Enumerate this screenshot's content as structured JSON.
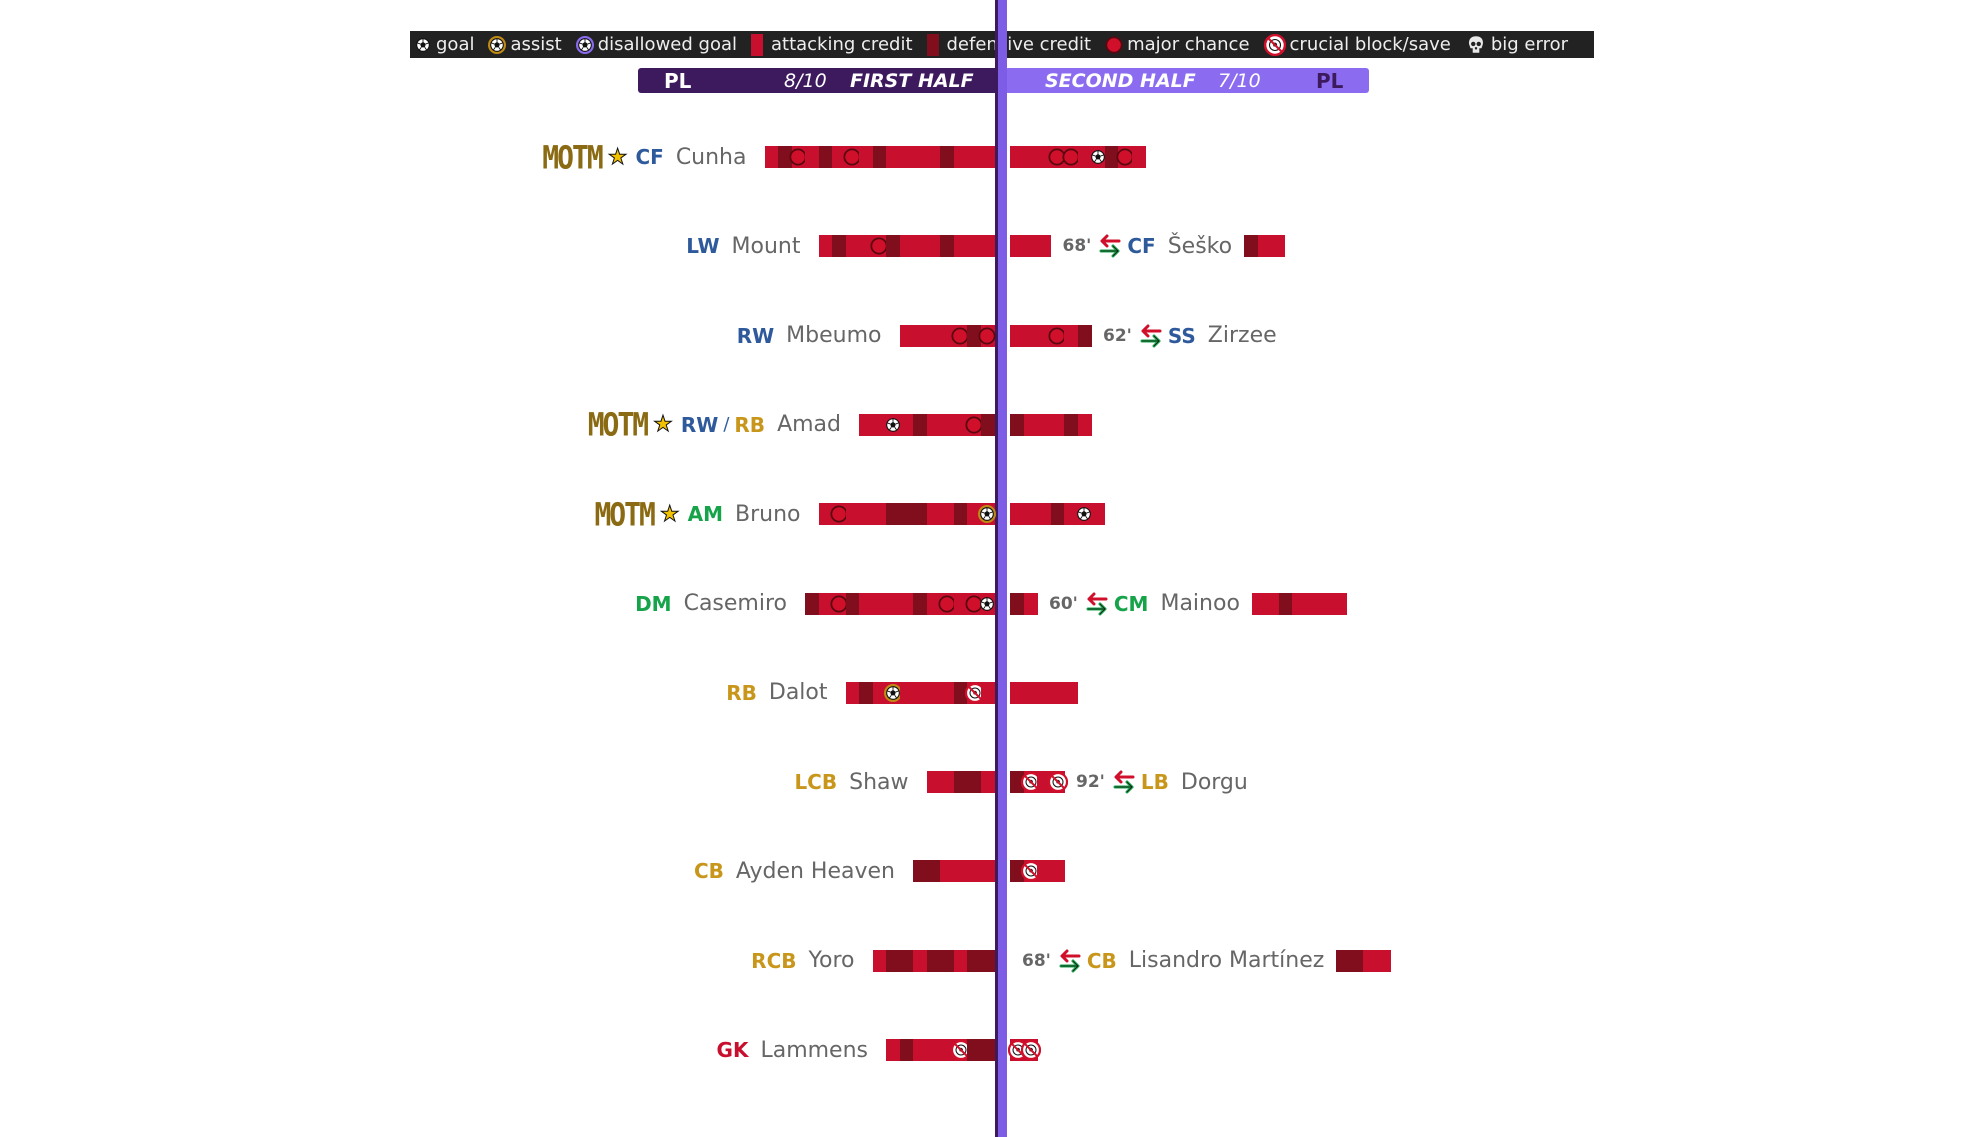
{
  "legend": [
    {
      "icon": "goal-icon",
      "label": "goal"
    },
    {
      "icon": "assist-icon",
      "label": "assist"
    },
    {
      "icon": "disallowed-goal-icon",
      "label": "disallowed goal"
    },
    {
      "icon": "attacking-credit-icon",
      "label": "attacking credit"
    },
    {
      "icon": "defensive-credit-icon",
      "label": "defensive credit"
    },
    {
      "icon": "major-chance-icon",
      "label": "major chance"
    },
    {
      "icon": "crucial-block-save-icon",
      "label": "crucial block/save"
    },
    {
      "icon": "big-error-icon",
      "label": "big error"
    }
  ],
  "colors": {
    "attacking": "#c8102e",
    "defensive": "#800e1c",
    "first_half_header": "#3d1a5e",
    "second_half_header": "#8b6cf0",
    "forward": "#2e5a9c",
    "midfield": "#17a34a",
    "defence": "#c8961a",
    "goalkeeper": "#c8102e",
    "motm": "#8a6a12"
  },
  "first_half": {
    "competition": "PL",
    "rating": "8/10",
    "title": "FIRST HALF"
  },
  "second_half": {
    "competition": "PL",
    "rating": "7/10",
    "title": "SECOND HALF"
  },
  "motm_label": "MOTM",
  "chart_data": {
    "type": "diverging-timeline",
    "halves": [
      "FIRST HALF",
      "SECOND HALF"
    ],
    "rows": [
      {
        "player": "Cunha",
        "positions": [
          "CF"
        ],
        "motm": true,
        "first": [
          "A",
          "D",
          "M",
          "A",
          "D",
          "A",
          "M",
          "A",
          "D",
          "A",
          "A",
          "A",
          "A",
          "D",
          "A",
          "A",
          "A"
        ],
        "second": [
          "A",
          "A",
          "A",
          "M",
          "M",
          "A",
          "G",
          "D",
          "M",
          "A"
        ]
      },
      {
        "player": "Mount",
        "positions": [
          "LW"
        ],
        "first": [
          "A",
          "D",
          "A",
          "A",
          "M",
          "D",
          "A",
          "A",
          "A",
          "D",
          "A",
          "A",
          "A"
        ],
        "second": [
          "A",
          "A",
          "A"
        ],
        "sub": {
          "minute": "68'",
          "player": "Šeško",
          "positions": [
            "CF"
          ],
          "bars": [
            "D",
            "A",
            "A"
          ]
        }
      },
      {
        "player": "Mbeumo",
        "positions": [
          "RW"
        ],
        "first": [
          "A",
          "A",
          "A",
          "A",
          "M",
          "D",
          "M"
        ],
        "second": [
          "A",
          "A",
          "A",
          "M",
          "A",
          "D"
        ],
        "sub": {
          "minute": "62'",
          "player": "Zirzee",
          "positions": [
            "SS"
          ],
          "bars": []
        }
      },
      {
        "player": "Amad",
        "positions": [
          "RW",
          "RB"
        ],
        "motm": true,
        "first": [
          "A",
          "A",
          "G",
          "A",
          "D",
          "A",
          "A",
          "A",
          "M",
          "D"
        ],
        "second": [
          "D",
          "A",
          "A",
          "A",
          "D",
          "A"
        ]
      },
      {
        "player": "Bruno",
        "positions": [
          "AM"
        ],
        "motm": true,
        "first": [
          "A",
          "M",
          "A",
          "A",
          "A",
          "D",
          "D",
          "D",
          "A",
          "A",
          "D",
          "A",
          "S"
        ],
        "second": [
          "A",
          "A",
          "A",
          "D",
          "A",
          "G",
          "A"
        ]
      },
      {
        "player": "Casemiro",
        "positions": [
          "DM"
        ],
        "first": [
          "D",
          "A",
          "M",
          "D",
          "A",
          "A",
          "A",
          "A",
          "D",
          "A",
          "M",
          "A",
          "M",
          "G"
        ],
        "second": [
          "D",
          "A"
        ],
        "sub": {
          "minute": "60'",
          "player": "Mainoo",
          "positions": [
            "CM"
          ],
          "bars": [
            "A",
            "A",
            "D",
            "A",
            "A",
            "A",
            "A"
          ]
        }
      },
      {
        "player": "Dalot",
        "positions": [
          "RB"
        ],
        "first": [
          "A",
          "D",
          "A",
          "S",
          "A",
          "A",
          "A",
          "A",
          "D",
          "B",
          "A"
        ],
        "second": [
          "A",
          "A",
          "A",
          "A",
          "A"
        ]
      },
      {
        "player": "Shaw",
        "positions": [
          "LCB"
        ],
        "first": [
          "A",
          "A",
          "D",
          "D",
          "A"
        ],
        "second": [
          "D",
          "B",
          "A",
          "B"
        ],
        "sub": {
          "minute": "92'",
          "player": "Dorgu",
          "positions": [
            "LB"
          ],
          "bars": []
        }
      },
      {
        "player": "Ayden Heaven",
        "positions": [
          "CB"
        ],
        "first": [
          "D",
          "D",
          "A",
          "A",
          "A",
          "A"
        ],
        "second": [
          "D",
          "B",
          "A",
          "A"
        ]
      },
      {
        "player": "Yoro",
        "positions": [
          "RCB"
        ],
        "first": [
          "A",
          "D",
          "D",
          "A",
          "D",
          "D",
          "A",
          "D",
          "D"
        ],
        "second": [],
        "sub": {
          "minute": "68'",
          "player": "Lisandro Martínez",
          "positions": [
            "CB"
          ],
          "bars": [
            "D",
            "D",
            "A",
            "A"
          ]
        }
      },
      {
        "player": "Lammens",
        "positions": [
          "GK"
        ],
        "first": [
          "A",
          "D",
          "A",
          "A",
          "A",
          "B",
          "D",
          "D"
        ],
        "second": [
          "B",
          "B"
        ]
      }
    ]
  }
}
